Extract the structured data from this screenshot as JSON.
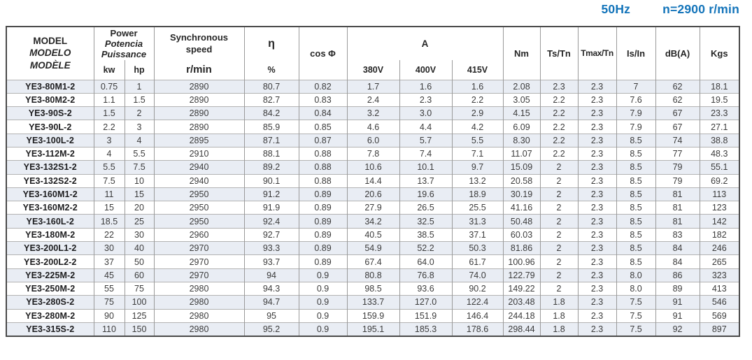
{
  "page_title": {
    "frequency": "50Hz",
    "speed": "n=2900 r/min"
  },
  "colors": {
    "accent": "#1374ba",
    "stripe": "#e9edf4",
    "grid": "#9a9a9a",
    "row_line": "#b3b3b3",
    "frame": "#4a4a4a",
    "text": "#3c3c3c",
    "model_text": "#1d1d1f"
  },
  "table": {
    "header": {
      "model_lines": [
        "MODEL",
        "MODELO",
        "MODÈLE"
      ],
      "power_lines": [
        "Power",
        "Potencia",
        "Puissance"
      ],
      "power_sub": [
        "kw",
        "hp"
      ],
      "sync_lines": [
        "Synchronous",
        "speed"
      ],
      "sync_sub": "r/min",
      "eta": "η",
      "eta_sub": "%",
      "cos_phi": "cos Φ",
      "amps": "A",
      "amps_sub": [
        "380V",
        "400V",
        "415V"
      ],
      "nm": "Nm",
      "ts_tn": "Ts/Tn",
      "tmax_tn": "Tmax/Tn",
      "is_in": "Is/In",
      "dba": "dB(A)",
      "kgs": "Kgs"
    },
    "rows": [
      [
        "YE3-80M1-2",
        "0.75",
        "1",
        "2890",
        "80.7",
        "0.82",
        "1.7",
        "1.6",
        "1.6",
        "2.08",
        "2.3",
        "2.3",
        "7",
        "62",
        "18.1"
      ],
      [
        "YE3-80M2-2",
        "1.1",
        "1.5",
        "2890",
        "82.7",
        "0.83",
        "2.4",
        "2.3",
        "2.2",
        "3.05",
        "2.2",
        "2.3",
        "7.6",
        "62",
        "19.5"
      ],
      [
        "YE3-90S-2",
        "1.5",
        "2",
        "2890",
        "84.2",
        "0.84",
        "3.2",
        "3.0",
        "2.9",
        "4.15",
        "2.2",
        "2.3",
        "7.9",
        "67",
        "23.3"
      ],
      [
        "YE3-90L-2",
        "2.2",
        "3",
        "2890",
        "85.9",
        "0.85",
        "4.6",
        "4.4",
        "4.2",
        "6.09",
        "2.2",
        "2.3",
        "7.9",
        "67",
        "27.1"
      ],
      [
        "YE3-100L-2",
        "3",
        "4",
        "2895",
        "87.1",
        "0.87",
        "6.0",
        "5.7",
        "5.5",
        "8.30",
        "2.2",
        "2.3",
        "8.5",
        "74",
        "38.8"
      ],
      [
        "YE3-112M-2",
        "4",
        "5.5",
        "2910",
        "88.1",
        "0.88",
        "7.8",
        "7.4",
        "7.1",
        "11.07",
        "2.2",
        "2.3",
        "8.5",
        "77",
        "48.3"
      ],
      [
        "YE3-132S1-2",
        "5.5",
        "7.5",
        "2940",
        "89.2",
        "0.88",
        "10.6",
        "10.1",
        "9.7",
        "15.09",
        "2",
        "2.3",
        "8.5",
        "79",
        "55.1"
      ],
      [
        "YE3-132S2-2",
        "7.5",
        "10",
        "2940",
        "90.1",
        "0.88",
        "14.4",
        "13.7",
        "13.2",
        "20.58",
        "2",
        "2.3",
        "8.5",
        "79",
        "69.2"
      ],
      [
        "YE3-160M1-2",
        "11",
        "15",
        "2950",
        "91.2",
        "0.89",
        "20.6",
        "19.6",
        "18.9",
        "30.19",
        "2",
        "2.3",
        "8.5",
        "81",
        "113"
      ],
      [
        "YE3-160M2-2",
        "15",
        "20",
        "2950",
        "91.9",
        "0.89",
        "27.9",
        "26.5",
        "25.5",
        "41.16",
        "2",
        "2.3",
        "8.5",
        "81",
        "123"
      ],
      [
        "YE3-160L-2",
        "18.5",
        "25",
        "2950",
        "92.4",
        "0.89",
        "34.2",
        "32.5",
        "31.3",
        "50.48",
        "2",
        "2.3",
        "8.5",
        "81",
        "142"
      ],
      [
        "YE3-180M-2",
        "22",
        "30",
        "2960",
        "92.7",
        "0.89",
        "40.5",
        "38.5",
        "37.1",
        "60.03",
        "2",
        "2.3",
        "8.5",
        "83",
        "182"
      ],
      [
        "YE3-200L1-2",
        "30",
        "40",
        "2970",
        "93.3",
        "0.89",
        "54.9",
        "52.2",
        "50.3",
        "81.86",
        "2",
        "2.3",
        "8.5",
        "84",
        "246"
      ],
      [
        "YE3-200L2-2",
        "37",
        "50",
        "2970",
        "93.7",
        "0.89",
        "67.4",
        "64.0",
        "61.7",
        "100.96",
        "2",
        "2.3",
        "8.5",
        "84",
        "265"
      ],
      [
        "YE3-225M-2",
        "45",
        "60",
        "2970",
        "94",
        "0.9",
        "80.8",
        "76.8",
        "74.0",
        "122.79",
        "2",
        "2.3",
        "8.0",
        "86",
        "323"
      ],
      [
        "YE3-250M-2",
        "55",
        "75",
        "2980",
        "94.3",
        "0.9",
        "98.5",
        "93.6",
        "90.2",
        "149.22",
        "2",
        "2.3",
        "8.0",
        "89",
        "413"
      ],
      [
        "YE3-280S-2",
        "75",
        "100",
        "2980",
        "94.7",
        "0.9",
        "133.7",
        "127.0",
        "122.4",
        "203.48",
        "1.8",
        "2.3",
        "7.5",
        "91",
        "546"
      ],
      [
        "YE3-280M-2",
        "90",
        "125",
        "2980",
        "95",
        "0.9",
        "159.9",
        "151.9",
        "146.4",
        "244.18",
        "1.8",
        "2.3",
        "7.5",
        "91",
        "569"
      ],
      [
        "YE3-315S-2",
        "110",
        "150",
        "2980",
        "95.2",
        "0.9",
        "195.1",
        "185.3",
        "178.6",
        "298.44",
        "1.8",
        "2.3",
        "7.5",
        "92",
        "897"
      ]
    ]
  }
}
